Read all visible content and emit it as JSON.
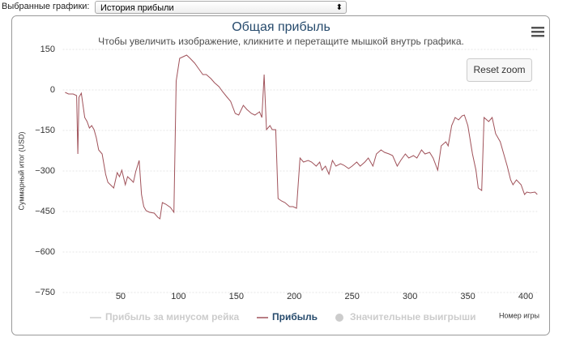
{
  "controls": {
    "label": "Выбранные графики:",
    "selected": "История прибыли"
  },
  "reset_zoom": "Reset zoom",
  "chart_data": {
    "type": "line",
    "title": "Общая прибыль",
    "subtitle": "Чтобы увеличить изображение, кликните и перетащите мышкой внутрь графика.",
    "y_label": "Суммарный итог (USD)",
    "x_label": "Номер игры",
    "xlim": [
      0,
      410
    ],
    "xticks": [
      50,
      100,
      150,
      200,
      250,
      300,
      350,
      400
    ],
    "ylim": [
      -750,
      150
    ],
    "yticks": [
      150,
      0,
      {
        "value": -150,
        "label": "−150"
      },
      {
        "value": -300,
        "label": "−300"
      },
      {
        "value": -450,
        "label": "−450"
      },
      {
        "value": -600,
        "label": "−600"
      },
      {
        "value": -750,
        "label": "−750"
      }
    ],
    "grid": true,
    "x": [
      2,
      5,
      9,
      12,
      13,
      14,
      16,
      19,
      21,
      23,
      25,
      27,
      29,
      31,
      34,
      37,
      39,
      44,
      47,
      49,
      51,
      54,
      56,
      59,
      61,
      63,
      66,
      68,
      70,
      72,
      75,
      79,
      82,
      84,
      86,
      89,
      93,
      96,
      98,
      101,
      104,
      107,
      110,
      114,
      117,
      121,
      124,
      128,
      131,
      135,
      138,
      142,
      145,
      149,
      152,
      156,
      159,
      163,
      166,
      170,
      172,
      174,
      176,
      179,
      181,
      184,
      186,
      189,
      192,
      196,
      199,
      202,
      205,
      208,
      212,
      215,
      219,
      222,
      224,
      227,
      230,
      233,
      236,
      240,
      243,
      247,
      250,
      254,
      257,
      261,
      264,
      268,
      271,
      275,
      278,
      282,
      285,
      289,
      292,
      296,
      299,
      303,
      306,
      310,
      313,
      317,
      320,
      324,
      327,
      331,
      333,
      336,
      339,
      342,
      345,
      347,
      350,
      354,
      357,
      359,
      362,
      364,
      368,
      371,
      374,
      378,
      381,
      384,
      387,
      389,
      392,
      396,
      399,
      401,
      404,
      408,
      410
    ],
    "series": [
      {
        "name": "Прибыль",
        "color": "#a0525a",
        "values": [
          -9,
          -15,
          -15,
          -21,
          -237,
          -27,
          -12,
          -102,
          -117,
          -141,
          -132,
          -147,
          -177,
          -222,
          -237,
          -312,
          -342,
          -363,
          -306,
          -321,
          -297,
          -351,
          -321,
          -333,
          -342,
          -303,
          -261,
          -387,
          -432,
          -447,
          -453,
          -456,
          -471,
          -477,
          -417,
          -423,
          -435,
          -453,
          33,
          117,
          123,
          129,
          117,
          99,
          81,
          57,
          57,
          42,
          27,
          12,
          -6,
          -27,
          -42,
          -87,
          -93,
          -57,
          -72,
          -87,
          -93,
          -81,
          -102,
          57,
          -147,
          -132,
          -147,
          -147,
          -402,
          -411,
          -417,
          -432,
          -432,
          -438,
          -252,
          -267,
          -261,
          -267,
          -282,
          -267,
          -297,
          -282,
          -312,
          -261,
          -282,
          -273,
          -279,
          -291,
          -282,
          -267,
          -282,
          -267,
          -252,
          -282,
          -237,
          -222,
          -231,
          -237,
          -243,
          -282,
          -261,
          -237,
          -252,
          -243,
          -252,
          -222,
          -237,
          -231,
          -252,
          -297,
          -207,
          -192,
          -207,
          -132,
          -102,
          -111,
          -96,
          -93,
          -132,
          -237,
          -297,
          -363,
          -372,
          -102,
          -117,
          -102,
          -162,
          -192,
          -237,
          -282,
          -333,
          -351,
          -333,
          -351,
          -387,
          -378,
          -381,
          -378,
          -387
        ]
      }
    ],
    "legend": [
      {
        "name": "Прибыль за минусом рейка",
        "color": "#cccccc",
        "marker": "line",
        "hidden": true
      },
      {
        "name": "Прибыль",
        "color": "#a0525a",
        "marker": "line",
        "hidden": false
      },
      {
        "name": "Значительные выигрыши",
        "color": "#cccccc",
        "marker": "circle",
        "hidden": true
      }
    ]
  }
}
